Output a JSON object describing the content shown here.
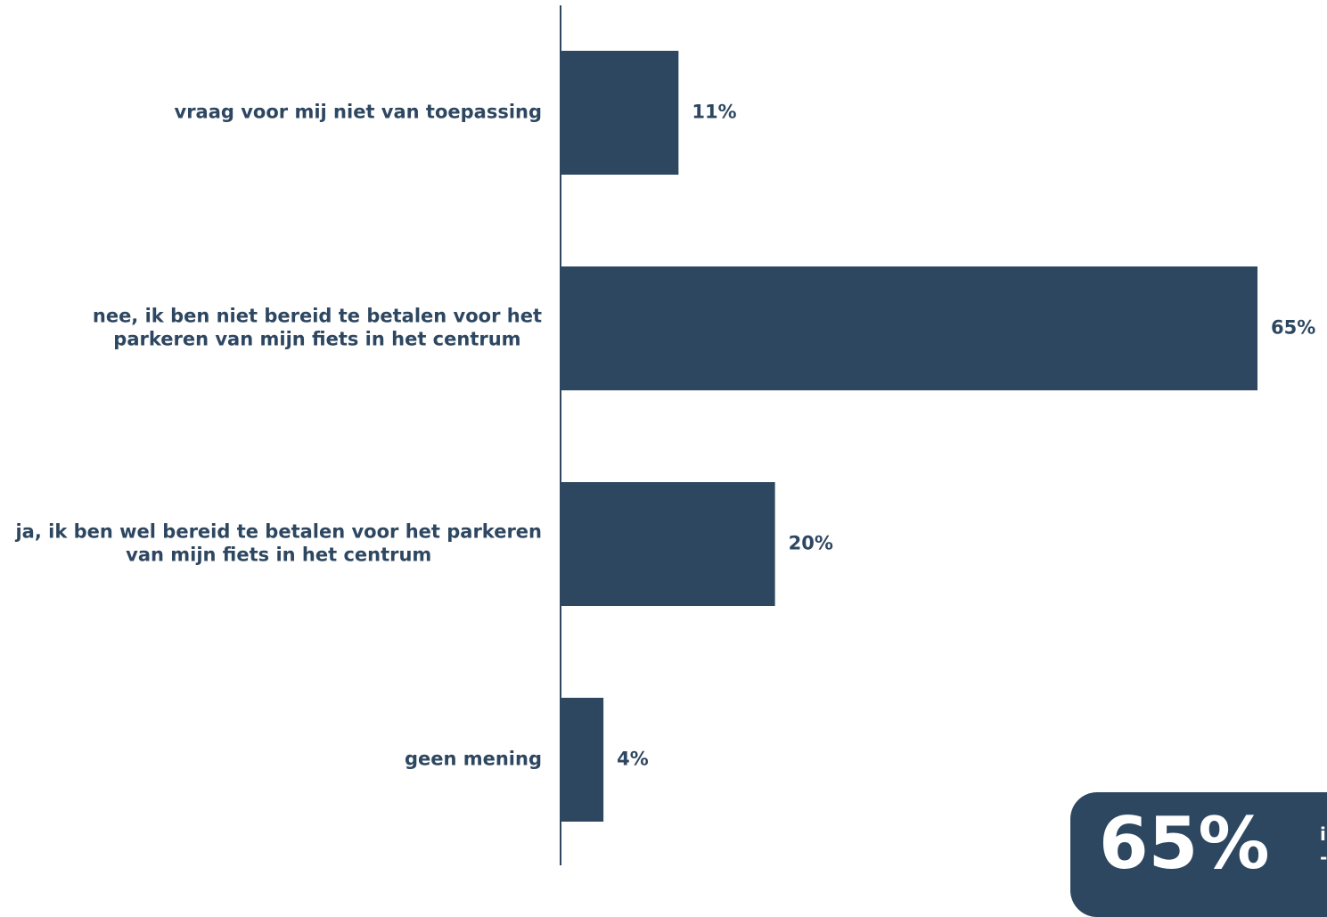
{
  "chart_data": {
    "type": "bar",
    "orientation": "horizontal",
    "categories": [
      [
        "vraag voor mij niet van toepassing"
      ],
      [
        "nee, ik ben niet bereid te betalen voor het",
        "parkeren van mijn fiets in het centrum"
      ],
      [
        "ja, ik ben wel bereid te betalen voor het parkeren",
        "van mijn fiets in het centrum"
      ],
      [
        "geen mening"
      ]
    ],
    "values": [
      11,
      65,
      20,
      4
    ],
    "value_labels": [
      "11%",
      "65%",
      "20%",
      "4%"
    ],
    "unit": "%",
    "xlim": [
      0,
      65
    ],
    "title": "",
    "xlabel": "",
    "ylabel": "",
    "grid": false,
    "legend": "none",
    "bar_color": "#2e4761"
  },
  "callout": {
    "value": "65%",
    "text_lines": [
      "i",
      "-"
    ]
  },
  "colors": {
    "accent": "#2e4761",
    "text": "#2e4761",
    "background": "#ffffff"
  }
}
